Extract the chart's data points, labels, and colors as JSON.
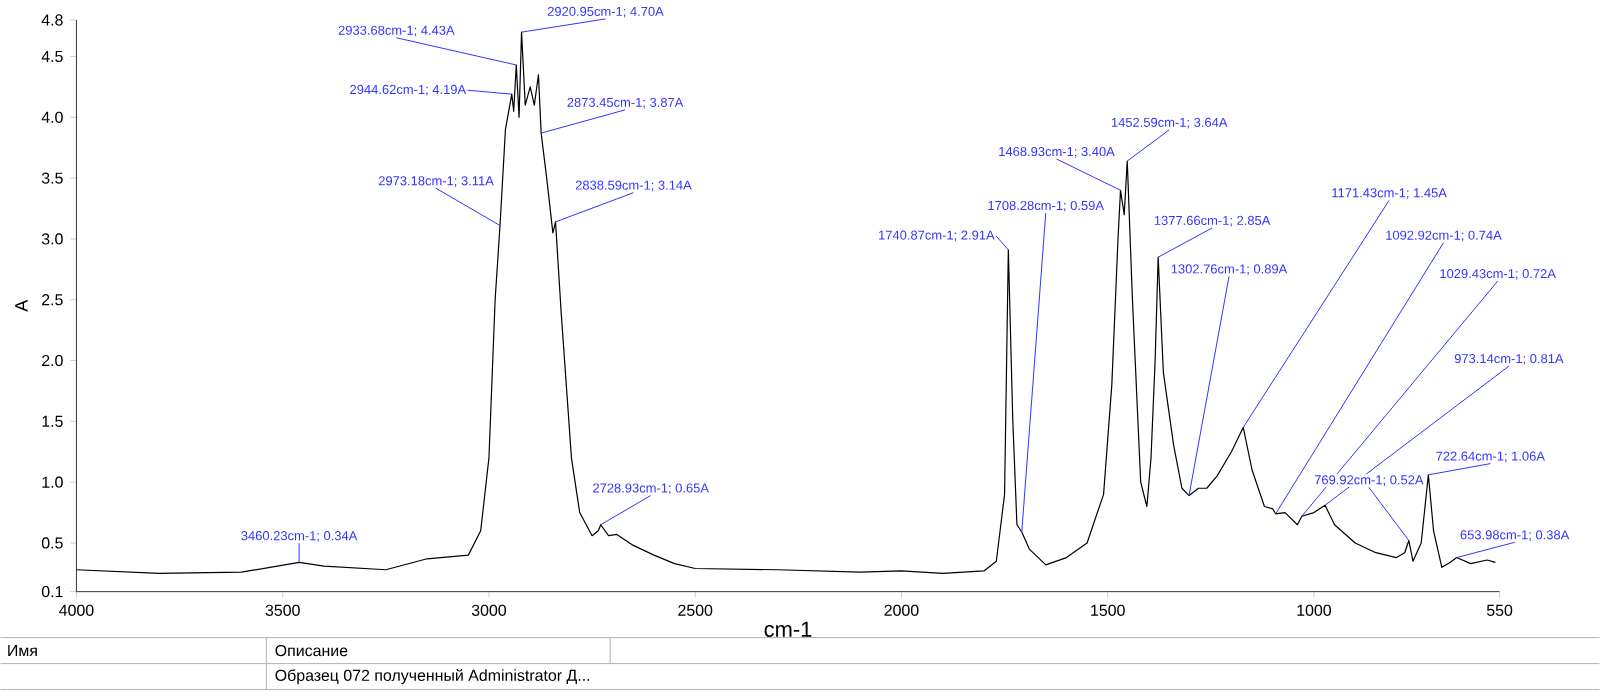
{
  "chart_data": {
    "type": "line",
    "xlabel": "cm-1",
    "ylabel": "A",
    "xlim": [
      4000,
      550
    ],
    "xticks": [
      4000,
      3500,
      3000,
      2500,
      2000,
      1500,
      1000,
      550
    ],
    "ylim": [
      0.1,
      4.8
    ],
    "yticks": [
      0.1,
      0.5,
      {
        "value": 1,
        "label": "1.0"
      },
      1.5,
      {
        "value": 2,
        "label": "2.0"
      },
      2.5,
      {
        "value": 3,
        "label": "3.0"
      },
      3.5,
      {
        "value": 4,
        "label": "4.0"
      },
      4.5,
      4.8
    ],
    "x": [
      4000,
      3800,
      3600,
      3460,
      3400,
      3250,
      3150,
      3050,
      3020,
      3000,
      2985,
      2973.18,
      2960,
      2944.62,
      2940,
      2933.68,
      2927,
      2920.95,
      2912,
      2900,
      2890,
      2880,
      2873.45,
      2860,
      2845,
      2838.59,
      2825,
      2800,
      2780,
      2750,
      2735,
      2728.93,
      2710,
      2690,
      2650,
      2600,
      2550,
      2500,
      2300,
      2100,
      2000,
      1900,
      1800,
      1770,
      1750,
      1740.87,
      1730,
      1720,
      1708.28,
      1690,
      1650,
      1600,
      1550,
      1510,
      1490,
      1475,
      1468.93,
      1460,
      1452.59,
      1440,
      1420,
      1405,
      1395,
      1385,
      1377.66,
      1365,
      1340,
      1320,
      1302.76,
      1280,
      1260,
      1235,
      1200,
      1171.43,
      1150,
      1120,
      1100,
      1092.92,
      1070,
      1040,
      1029.43,
      1000,
      973.14,
      950,
      900,
      850,
      800,
      780,
      769.92,
      760,
      740,
      722.64,
      710,
      690,
      670,
      653.98,
      620,
      580,
      560
    ],
    "series": [
      {
        "color": "#000000",
        "values": [
          0.28,
          0.25,
          0.26,
          0.34,
          0.31,
          0.28,
          0.37,
          0.4,
          0.6,
          1.2,
          2.5,
          3.11,
          3.9,
          4.19,
          4.05,
          4.43,
          4.0,
          4.7,
          4.1,
          4.25,
          4.1,
          4.35,
          3.87,
          3.5,
          3.05,
          3.14,
          2.4,
          1.2,
          0.75,
          0.56,
          0.6,
          0.65,
          0.56,
          0.57,
          0.48,
          0.4,
          0.33,
          0.29,
          0.28,
          0.26,
          0.27,
          0.25,
          0.27,
          0.35,
          0.9,
          2.91,
          1.5,
          0.65,
          0.59,
          0.45,
          0.32,
          0.38,
          0.5,
          0.9,
          1.8,
          3.0,
          3.4,
          3.2,
          3.64,
          2.5,
          1.0,
          0.8,
          1.2,
          2.0,
          2.85,
          1.9,
          1.3,
          0.95,
          0.89,
          0.95,
          0.95,
          1.05,
          1.25,
          1.45,
          1.1,
          0.8,
          0.78,
          0.74,
          0.75,
          0.65,
          0.72,
          0.75,
          0.81,
          0.65,
          0.5,
          0.42,
          0.38,
          0.42,
          0.52,
          0.35,
          0.5,
          1.06,
          0.6,
          0.3,
          0.34,
          0.38,
          0.33,
          0.36,
          0.34
        ]
      }
    ],
    "annotations": [
      {
        "text": "2933.68cm-1; 4.43A",
        "x": 2933.68,
        "y": 4.43
      },
      {
        "text": "2944.62cm-1; 4.19A",
        "x": 2944.62,
        "y": 4.19
      },
      {
        "text": "2920.95cm-1; 4.70A",
        "x": 2920.95,
        "y": 4.7
      },
      {
        "text": "2873.45cm-1; 3.87A",
        "x": 2873.45,
        "y": 3.87
      },
      {
        "text": "2973.18cm-1; 3.11A",
        "x": 2973.18,
        "y": 3.11
      },
      {
        "text": "2838.59cm-1; 3.14A",
        "x": 2838.59,
        "y": 3.14
      },
      {
        "text": "2728.93cm-1; 0.65A",
        "x": 2728.93,
        "y": 0.65
      },
      {
        "text": "3460.23cm-1; 0.34A",
        "x": 3460.23,
        "y": 0.34
      },
      {
        "text": "1740.87cm-1; 2.91A",
        "x": 1740.87,
        "y": 2.91
      },
      {
        "text": "1708.28cm-1; 0.59A",
        "x": 1708.28,
        "y": 0.59
      },
      {
        "text": "1468.93cm-1; 3.40A",
        "x": 1468.93,
        "y": 3.4
      },
      {
        "text": "1452.59cm-1; 3.64A",
        "x": 1452.59,
        "y": 3.64
      },
      {
        "text": "1377.66cm-1; 2.85A",
        "x": 1377.66,
        "y": 2.85
      },
      {
        "text": "1302.76cm-1; 0.89A",
        "x": 1302.76,
        "y": 0.89
      },
      {
        "text": "1171.43cm-1; 1.45A",
        "x": 1171.43,
        "y": 1.45
      },
      {
        "text": "1092.92cm-1; 0.74A",
        "x": 1092.92,
        "y": 0.74
      },
      {
        "text": "1029.43cm-1; 0.72A",
        "x": 1029.43,
        "y": 0.72
      },
      {
        "text": "973.14cm-1; 0.81A",
        "x": 973.14,
        "y": 0.81
      },
      {
        "text": "769.92cm-1; 0.52A",
        "x": 769.92,
        "y": 0.52
      },
      {
        "text": "722.64cm-1; 1.06A",
        "x": 722.64,
        "y": 1.06
      },
      {
        "text": "653.98cm-1; 0.38A",
        "x": 653.98,
        "y": 0.38
      },
      "Имя",
      "Описание",
      "Образец 072 полученный Administrator Д..."
    ]
  }
}
